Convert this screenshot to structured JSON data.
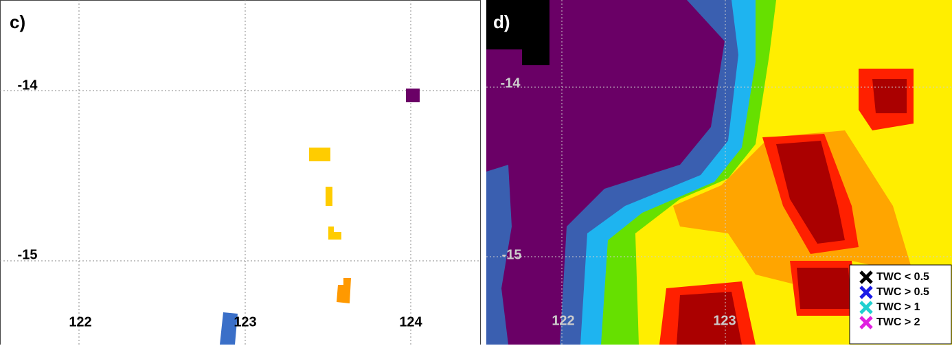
{
  "panels": [
    {
      "label": "c)",
      "lon_ticks": [
        122,
        123,
        124
      ],
      "lat_ticks": [
        -14,
        -15
      ]
    },
    {
      "label": "d)",
      "lon_ticks": [
        122,
        123
      ],
      "lat_ticks": [
        -14,
        -15
      ]
    }
  ],
  "legend": {
    "entries": [
      "TWC < 0.5",
      "TWC > 0.5",
      "TWC > 1",
      "TWC > 2"
    ]
  }
}
